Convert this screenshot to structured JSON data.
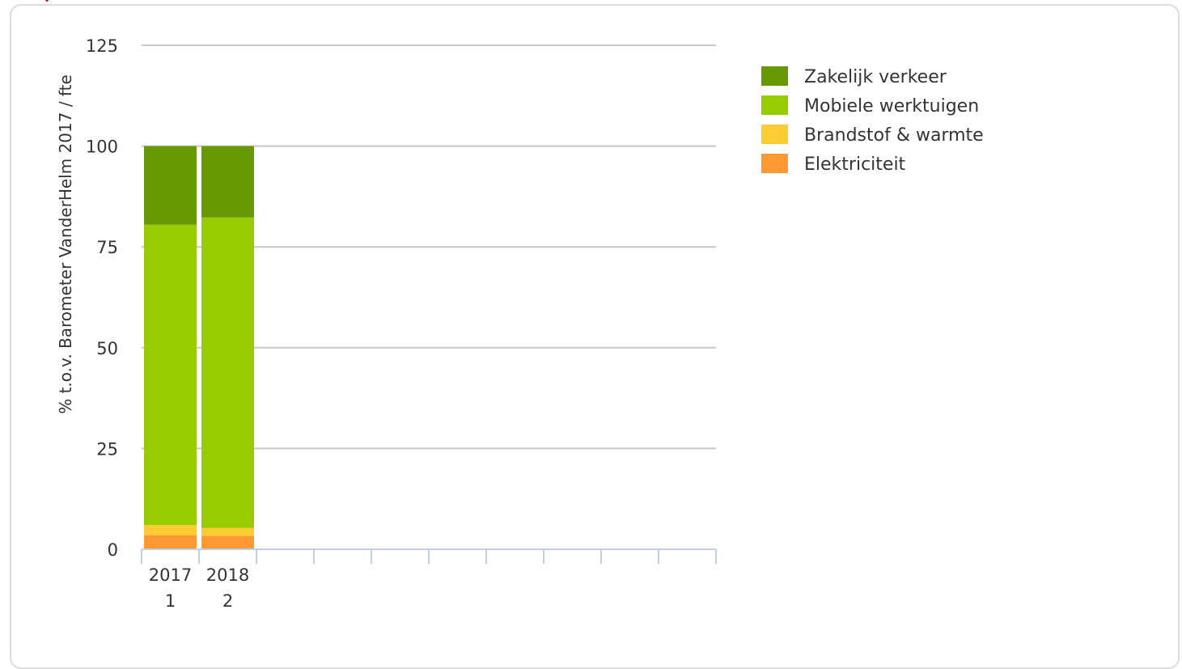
{
  "colors": {
    "zakelijk_verkeer": "#669900",
    "mobiele_werktuigen": "#99cc00",
    "brandstof_warmte": "#ffcc33",
    "elektriciteit": "#ff9933",
    "gridline": "#c8c8c8",
    "axis": "#c0d0e0",
    "corner_mark": "#cc0000"
  },
  "chart_data": {
    "type": "bar",
    "stacked": true,
    "ylabel": "% t.o.v. Barometer VanderHelm 2017 / fte",
    "ylim": [
      0,
      125
    ],
    "yticks": [
      0,
      25,
      50,
      75,
      100,
      125
    ],
    "grid": true,
    "legend_position": "top-right",
    "total_slots": 10,
    "categories": [
      {
        "year": "2017",
        "index": "1"
      },
      {
        "year": "2018",
        "index": "2"
      }
    ],
    "series": [
      {
        "name": "Elektriciteit",
        "color_key": "elektriciteit",
        "values": [
          3.5,
          3.3
        ]
      },
      {
        "name": "Brandstof & warmte",
        "color_key": "brandstof_warmte",
        "values": [
          2.5,
          2.0
        ]
      },
      {
        "name": "Mobiele werktuigen",
        "color_key": "mobiele_werktuigen",
        "values": [
          74.5,
          77.0
        ]
      },
      {
        "name": "Zakelijk verkeer",
        "color_key": "zakelijk_verkeer",
        "values": [
          19.5,
          17.7
        ]
      }
    ],
    "legend_order": [
      "Zakelijk verkeer",
      "Mobiele werktuigen",
      "Brandstof & warmte",
      "Elektriciteit"
    ]
  }
}
